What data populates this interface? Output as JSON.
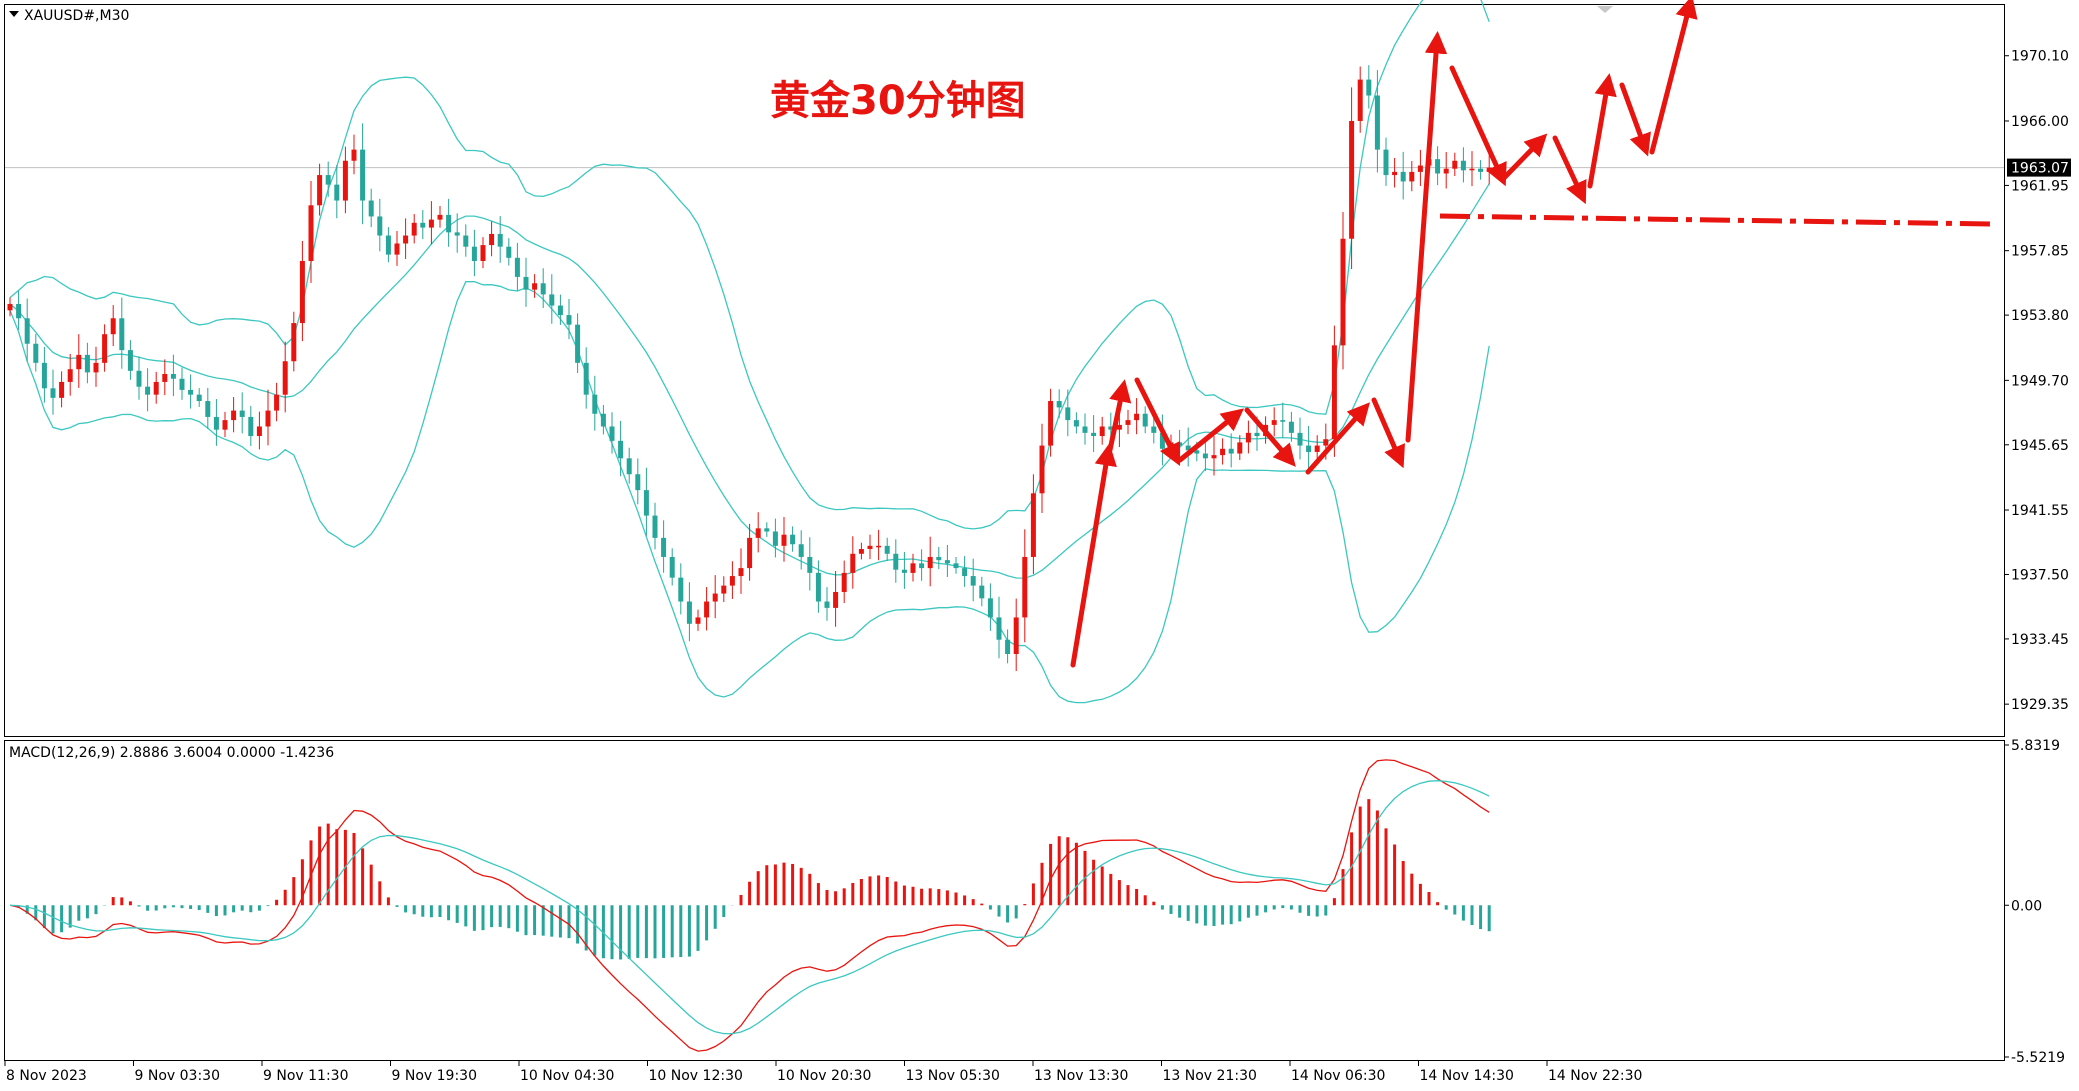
{
  "window": {
    "symbol_label": "XAUUSD#,M30",
    "annotation_title": "黄金30分钟图"
  },
  "colors": {
    "bull": "#e8140f",
    "bear": "#26a69a",
    "band": "#3cc8c0",
    "macd_line": "#e8140f",
    "signal_line": "#3cc8c0",
    "arrow": "#e8140f",
    "price_tag_bg": "#000000"
  },
  "price_axis": {
    "ticks": [
      "1970.10",
      "1966.00",
      "1961.95",
      "1957.85",
      "1953.80",
      "1949.70",
      "1945.65",
      "1941.55",
      "1937.50",
      "1933.45",
      "1929.35"
    ],
    "tick_values": [
      1970.1,
      1966.0,
      1961.95,
      1957.85,
      1953.8,
      1949.7,
      1945.65,
      1941.55,
      1937.5,
      1933.45,
      1929.35
    ],
    "current_price": "1963.07",
    "current_price_value": 1963.07,
    "ymin": 1927.6,
    "ymax": 1973.1
  },
  "time_axis": {
    "labels": [
      "8 Nov 2023",
      "9 Nov 03:30",
      "9 Nov 11:30",
      "9 Nov 19:30",
      "10 Nov 04:30",
      "10 Nov 12:30",
      "10 Nov 20:30",
      "13 Nov 05:30",
      "13 Nov 13:30",
      "13 Nov 21:30",
      "14 Nov 06:30",
      "14 Nov 14:30",
      "14 Nov 22:30"
    ]
  },
  "indicator": {
    "label": "MACD(12,26,9) 2.8886 3.6004 0.0000 -1.4236",
    "ticks": [
      "5.8319",
      "0.00",
      "-5.5219"
    ],
    "tick_values": [
      5.8319,
      0.0,
      -5.5219
    ]
  },
  "chart_data": {
    "type": "candlestick",
    "symbol": "XAUUSD#",
    "timeframe": "M30",
    "close_path": [
      1954.5,
      1953.6,
      1952.0,
      1950.8,
      1949.2,
      1948.6,
      1949.6,
      1950.4,
      1951.3,
      1950.2,
      1950.8,
      1952.6,
      1953.6,
      1951.6,
      1950.3,
      1949.3,
      1948.8,
      1949.6,
      1950.1,
      1949.8,
      1949.1,
      1948.8,
      1948.4,
      1947.4,
      1946.6,
      1947.2,
      1947.8,
      1947.4,
      1946.2,
      1946.8,
      1947.8,
      1948.8,
      1950.9,
      1953.3,
      1957.2,
      1960.7,
      1962.6,
      1962.0,
      1961.0,
      1963.5,
      1964.2,
      1961.0,
      1960.0,
      1958.8,
      1957.6,
      1958.3,
      1958.8,
      1959.6,
      1959.3,
      1959.8,
      1960.1,
      1959.0,
      1958.8,
      1958.1,
      1957.2,
      1958.2,
      1958.9,
      1958.1,
      1957.4,
      1956.2,
      1955.4,
      1955.8,
      1955.1,
      1954.4,
      1953.8,
      1953.2,
      1950.8,
      1948.8,
      1947.6,
      1946.8,
      1945.9,
      1944.8,
      1943.8,
      1942.8,
      1941.2,
      1939.8,
      1938.6,
      1937.3,
      1935.8,
      1934.4,
      1934.8,
      1935.8,
      1936.3,
      1936.8,
      1937.4,
      1937.9,
      1939.8,
      1940.4,
      1940.2,
      1939.3,
      1940.0,
      1939.4,
      1938.6,
      1937.6,
      1935.8,
      1935.4,
      1936.4,
      1937.6,
      1938.8,
      1939.1,
      1939.3,
      1939.3,
      1938.8,
      1937.8,
      1937.6,
      1938.2,
      1937.9,
      1938.6,
      1938.4,
      1938.2,
      1937.9,
      1937.4,
      1936.8,
      1936.0,
      1934.8,
      1933.4,
      1932.5,
      1934.8,
      1938.6,
      1942.6,
      1945.6,
      1948.4,
      1948.0,
      1947.2,
      1946.8,
      1946.4,
      1946.2,
      1946.8,
      1946.6,
      1946.9,
      1947.2,
      1947.6,
      1946.8,
      1946.4,
      1945.4,
      1945.8,
      1945.6,
      1945.3,
      1945.1,
      1944.8,
      1945.0,
      1945.4,
      1945.1,
      1945.8,
      1946.4,
      1946.2,
      1946.9,
      1947.2,
      1947.1,
      1946.4,
      1945.6,
      1945.2,
      1945.6,
      1946.0,
      1951.9,
      1958.6,
      1966.0,
      1968.6,
      1967.6,
      1964.2,
      1962.6,
      1962.8,
      1962.2,
      1962.8,
      1963.2,
      1963.6,
      1962.7,
      1963.0,
      1963.5,
      1962.9,
      1963.0,
      1962.8,
      1963.07
    ]
  },
  "annotations": {
    "support_level": 1959.9,
    "arrows_note": "hand-drawn red trend arrows"
  }
}
